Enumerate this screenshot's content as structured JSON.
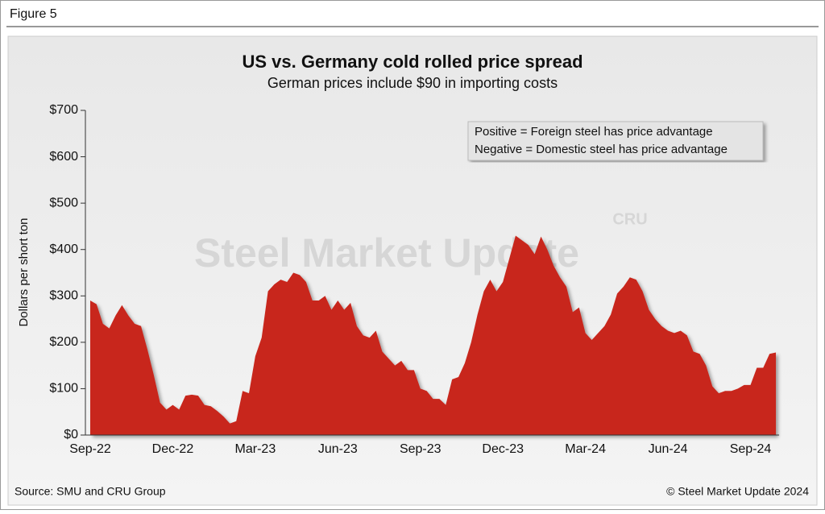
{
  "figure_label": "Figure 5",
  "source": "Source: SMU and CRU Group",
  "copyright": "© Steel Market Update 2024",
  "chart_data": {
    "type": "area",
    "title": "US vs. Germany cold rolled price spread",
    "subtitle": "German prices include $90 in importing costs",
    "ylabel": "Dollars per short ton",
    "annotations": [
      "Positive = Foreign steel has price advantage",
      "Negative = Domestic steel has price advantage"
    ],
    "watermark": [
      "Steel Market Update",
      "CRU"
    ],
    "color": "#c8281e",
    "categories": [
      "Sep-22",
      null,
      null,
      null,
      null,
      null,
      null,
      null,
      null,
      null,
      null,
      null,
      null,
      "Dec-22",
      null,
      null,
      null,
      null,
      null,
      null,
      null,
      null,
      null,
      null,
      null,
      null,
      "Mar-23",
      null,
      null,
      null,
      null,
      null,
      null,
      null,
      null,
      null,
      null,
      null,
      null,
      "Jun-23",
      null,
      null,
      null,
      null,
      null,
      null,
      null,
      null,
      null,
      null,
      null,
      null,
      "Sep-23",
      null,
      null,
      null,
      null,
      null,
      null,
      null,
      null,
      null,
      null,
      null,
      null,
      "Dec-23",
      null,
      null,
      null,
      null,
      null,
      null,
      null,
      null,
      null,
      null,
      null,
      null,
      "Mar-24",
      null,
      null,
      null,
      null,
      null,
      null,
      null,
      null,
      null,
      null,
      null,
      null,
      "Jun-24",
      null,
      null,
      null,
      null,
      null,
      null,
      null,
      null,
      null,
      null,
      null,
      null,
      "Sep-24",
      null,
      null,
      null,
      null
    ],
    "values": [
      290,
      282,
      240,
      230,
      258,
      280,
      258,
      240,
      235,
      185,
      130,
      70,
      55,
      65,
      55,
      85,
      87,
      85,
      65,
      62,
      52,
      40,
      25,
      30,
      95,
      90,
      170,
      210,
      310,
      325,
      335,
      330,
      350,
      345,
      330,
      290,
      290,
      300,
      270,
      290,
      270,
      285,
      235,
      215,
      210,
      225,
      180,
      165,
      150,
      160,
      140,
      140,
      100,
      95,
      78,
      78,
      65,
      120,
      125,
      155,
      200,
      260,
      310,
      335,
      310,
      330,
      380,
      430,
      420,
      410,
      390,
      428,
      400,
      365,
      340,
      320,
      265,
      275,
      220,
      205,
      220,
      235,
      260,
      305,
      320,
      340,
      335,
      310,
      270,
      250,
      235,
      225,
      220,
      225,
      215,
      180,
      175,
      150,
      105,
      90,
      95,
      95,
      100,
      108,
      108,
      145,
      145,
      175,
      178
    ],
    "ylim": [
      0,
      700
    ],
    "yticks": [
      {
        "value": 0,
        "label": "$0"
      },
      {
        "value": 100,
        "label": "$100"
      },
      {
        "value": 200,
        "label": "$200"
      },
      {
        "value": 300,
        "label": "$300"
      },
      {
        "value": 400,
        "label": "$400"
      },
      {
        "value": 500,
        "label": "$500"
      },
      {
        "value": 600,
        "label": "$600"
      },
      {
        "value": 700,
        "label": "$700"
      }
    ],
    "grid": false
  }
}
